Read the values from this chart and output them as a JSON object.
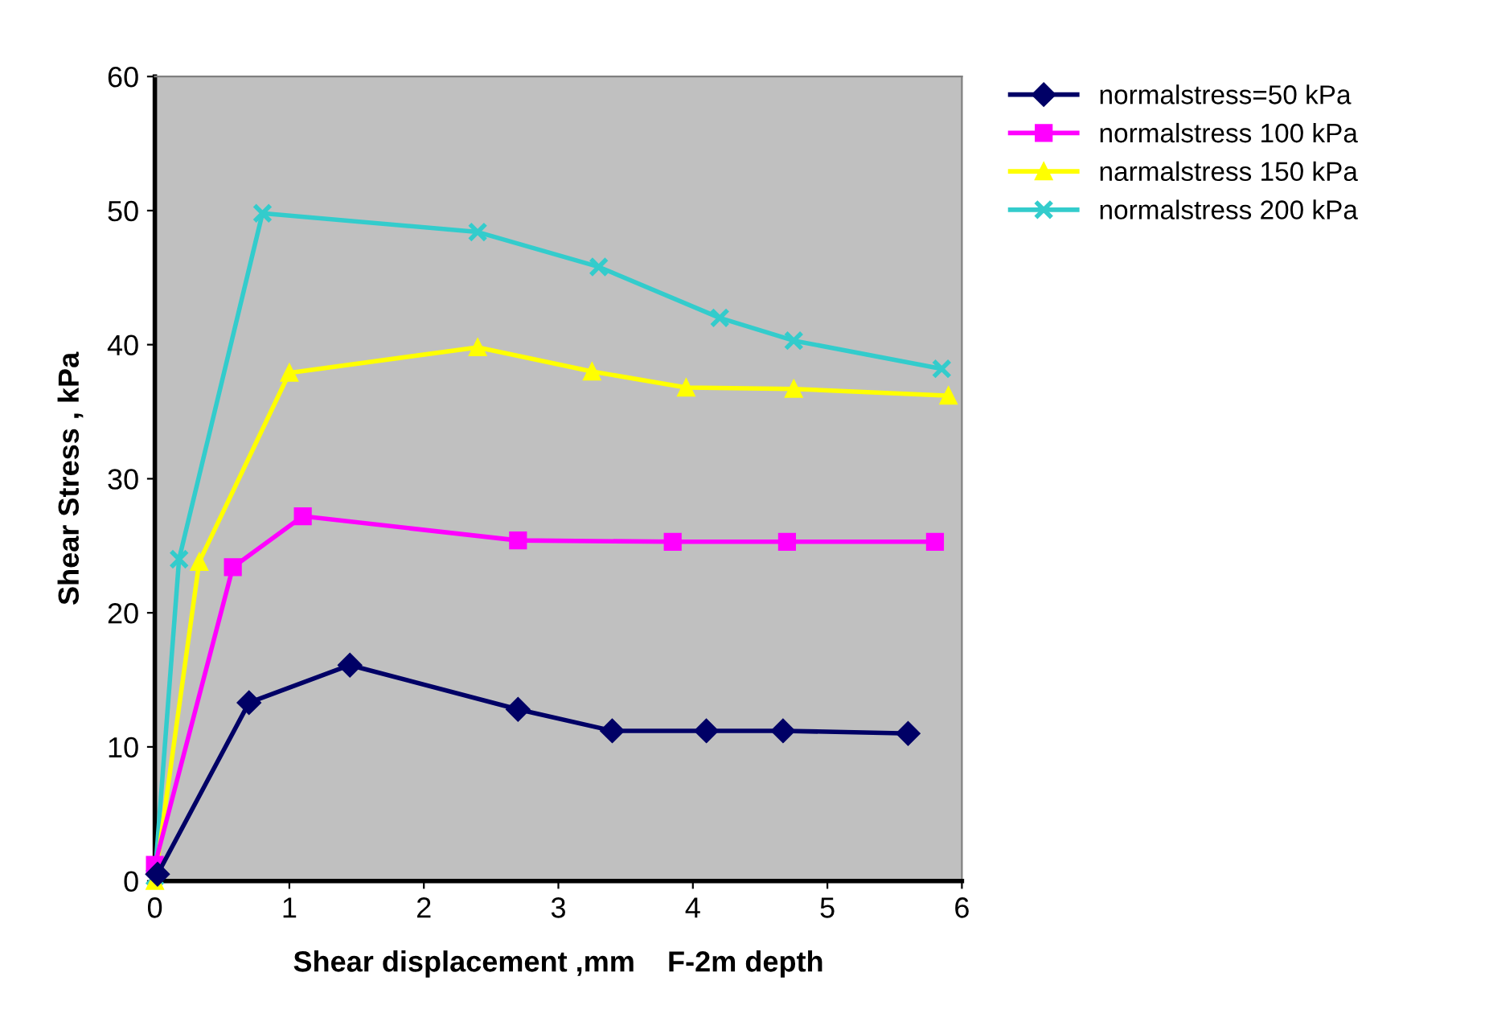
{
  "chart_data": {
    "type": "line",
    "xlabel": "Shear displacement ,mm    F-2m depth",
    "ylabel": "Shear Stress , kPa",
    "xlim": [
      0,
      6
    ],
    "xticks": [
      0,
      1,
      2,
      3,
      4,
      5,
      6
    ],
    "ylim": [
      0,
      60
    ],
    "yticks": [
      0,
      10,
      20,
      30,
      40,
      50,
      60
    ],
    "grid": false,
    "legend": "top right",
    "series": [
      {
        "name": "normalstress=50 kPa",
        "color": "#000066",
        "marker": "diamond",
        "x": [
          0.02,
          0.7,
          1.45,
          2.7,
          3.4,
          4.1,
          4.67,
          5.6
        ],
        "values": [
          0.5,
          13.3,
          16.1,
          12.8,
          11.2,
          11.2,
          11.2,
          11.0
        ]
      },
      {
        "name": "normalstress 100 kPa",
        "color": "#ff00ff",
        "marker": "square",
        "x": [
          0,
          0.58,
          1.1,
          2.7,
          3.85,
          4.7,
          5.8
        ],
        "values": [
          1.2,
          23.4,
          27.2,
          25.4,
          25.3,
          25.3,
          25.3
        ]
      },
      {
        "name": "narmalstress 150 kPa",
        "color": "#ffff00",
        "marker": "triangle",
        "x": [
          0,
          0.33,
          1.0,
          2.4,
          3.25,
          3.95,
          4.75,
          5.9
        ],
        "values": [
          0,
          23.8,
          37.9,
          39.8,
          38.0,
          36.8,
          36.7,
          36.2
        ]
      },
      {
        "name": "normalstress 200 kPa",
        "color": "#33cccc",
        "marker": "cross",
        "x": [
          0,
          0.18,
          0.8,
          2.4,
          3.3,
          4.2,
          4.75,
          5.85
        ],
        "values": [
          0.3,
          24.0,
          49.8,
          48.4,
          45.8,
          42.0,
          40.3,
          38.2
        ]
      }
    ]
  }
}
